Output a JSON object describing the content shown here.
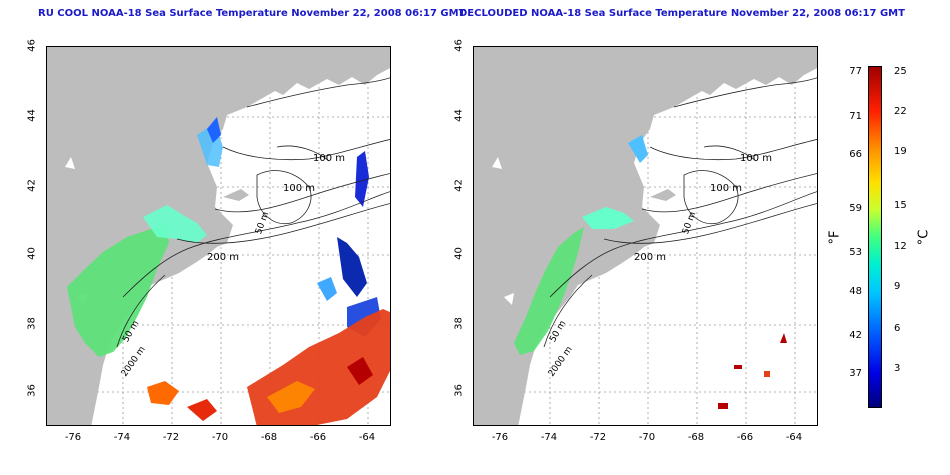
{
  "left_title": "RU COOL NOAA-18 Sea Surface Temperature November 22, 2008 06:17 GMT",
  "right_title": "DECLOUDED NOAA-18 Sea Surface Temperature November 22, 2008 06:17 GMT",
  "lat_ticks": [
    "46",
    "44",
    "42",
    "40",
    "38",
    "36"
  ],
  "lon_ticks": [
    "-76",
    "-74",
    "-72",
    "-70",
    "-68",
    "-66",
    "-64"
  ],
  "contour_labels": {
    "m100": "100 m",
    "m50": "50 m",
    "m200": "200 m",
    "m2000": "2000 m",
    "m50_b": "50 m"
  },
  "colorbar": {
    "f_label": "°F",
    "c_label": "°C",
    "f_ticks": [
      "77",
      "71",
      "66",
      "59",
      "53",
      "48",
      "42",
      "37"
    ],
    "c_ticks": [
      "25",
      "22",
      "19",
      "15",
      "12",
      "9",
      "6",
      "3"
    ],
    "colors": [
      "#00007a",
      "#0000e6",
      "#0060ff",
      "#00c8ff",
      "#40ff80",
      "#ffe000",
      "#ff9000",
      "#a00000"
    ]
  },
  "map": {
    "land_color": "#bdbdbd",
    "grid_style": "dotted",
    "lat_range": [
      35,
      46
    ],
    "lon_range": [
      -77,
      -63
    ]
  }
}
